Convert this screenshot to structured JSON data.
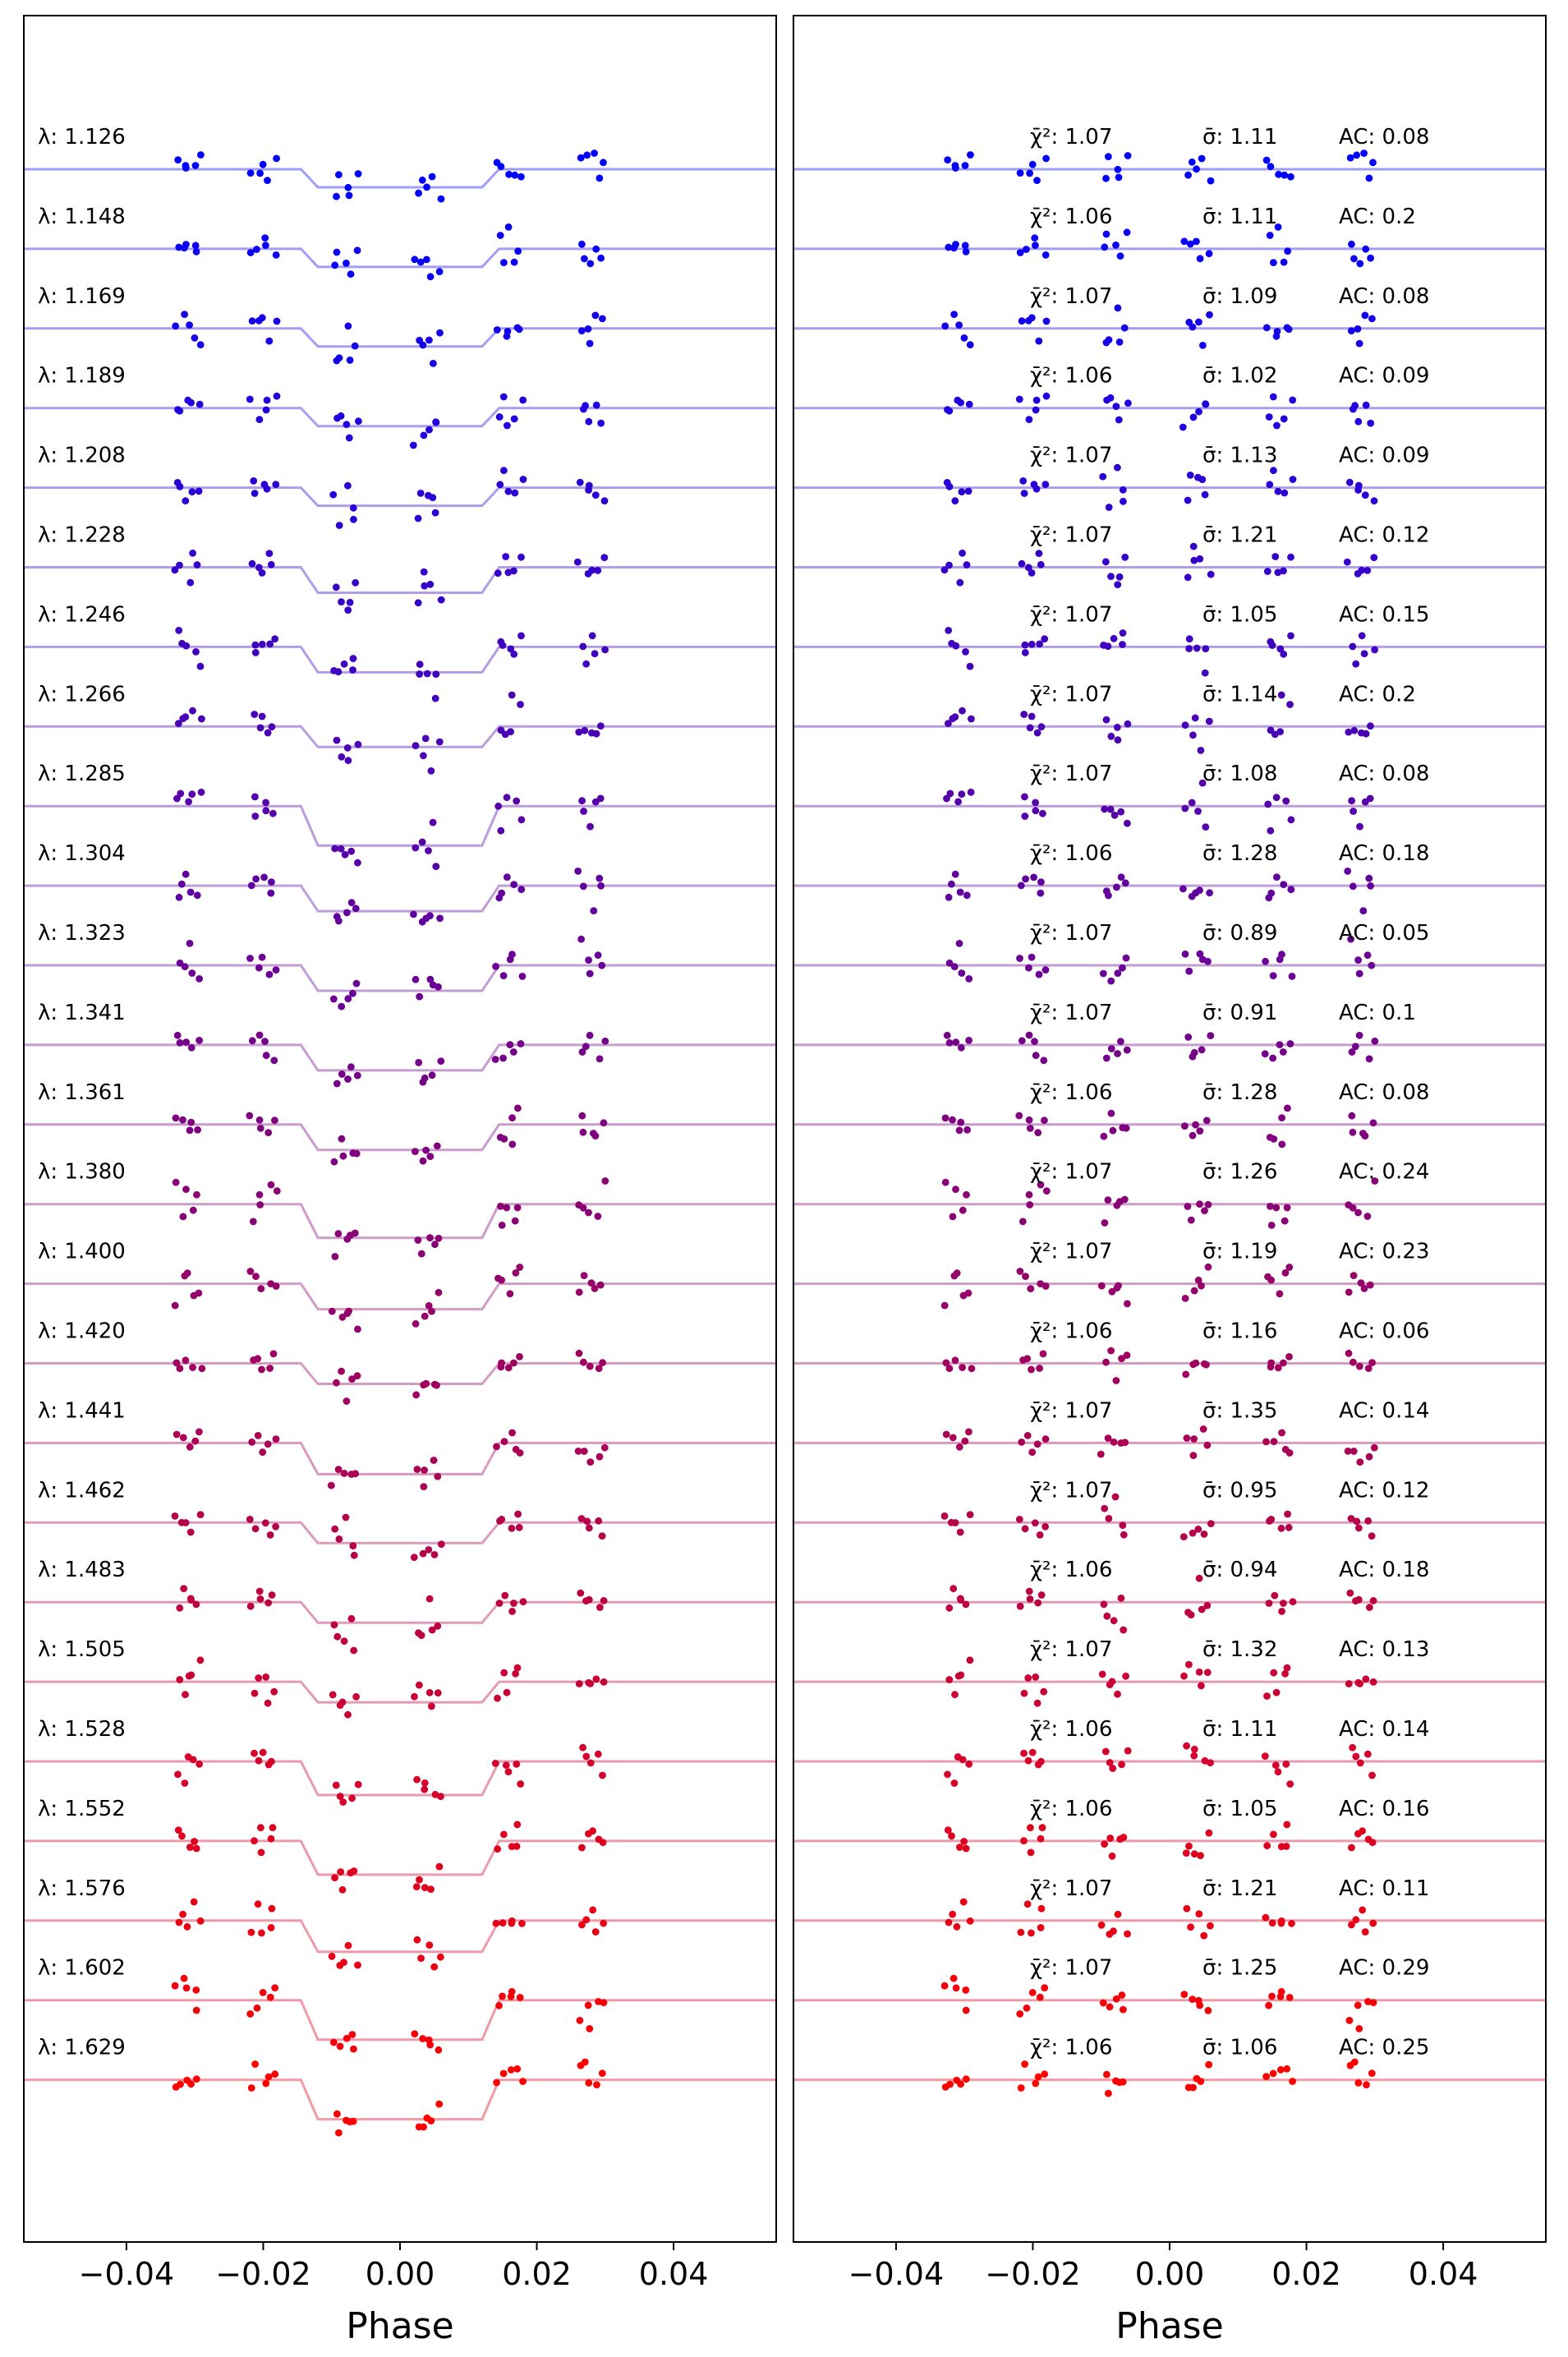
{
  "chart_data": [
    {
      "type": "scatter",
      "panel": "left",
      "xlabel": "Phase",
      "xlim": [
        -0.055,
        0.055
      ],
      "xticks": [
        -0.04,
        -0.02,
        0.0,
        0.02,
        0.04
      ],
      "xtick_labels": [
        "−0.04",
        "−0.02",
        "0.00",
        "0.02",
        "0.04"
      ],
      "y_ticks_shown": false,
      "grid": false,
      "legend": "none",
      "series_description": "25 spectroscopic light curves, vertically offset; each shows a transit model line (dip between phase -0.013 and 0.013) with binned data points",
      "transit": {
        "ingress_start": -0.0145,
        "ingress_end": -0.012,
        "egress_start": 0.012,
        "egress_end": 0.0145
      },
      "data_point_groups_phase": [
        -0.031,
        -0.02,
        -0.008,
        0.004,
        0.016,
        0.028
      ],
      "wavelength_labels": [
        "λ: 1.126",
        "λ: 1.148",
        "λ: 1.169",
        "λ: 1.189",
        "λ: 1.208",
        "λ: 1.228",
        "λ: 1.246",
        "λ: 1.266",
        "λ: 1.285",
        "λ: 1.304",
        "λ: 1.323",
        "λ: 1.341",
        "λ: 1.361",
        "λ: 1.380",
        "λ: 1.400",
        "λ: 1.420",
        "λ: 1.441",
        "λ: 1.462",
        "λ: 1.483",
        "λ: 1.505",
        "λ: 1.528",
        "λ: 1.552",
        "λ: 1.576",
        "λ: 1.602",
        "λ: 1.629"
      ],
      "transit_depth_relative": [
        0.22,
        0.22,
        0.22,
        0.22,
        0.22,
        0.31,
        0.31,
        0.25,
        0.48,
        0.31,
        0.31,
        0.31,
        0.31,
        0.41,
        0.31,
        0.25,
        0.38,
        0.25,
        0.25,
        0.25,
        0.41,
        0.41,
        0.38,
        0.48,
        0.48
      ]
    },
    {
      "type": "scatter",
      "panel": "right",
      "xlabel": "Phase",
      "xlim": [
        -0.055,
        0.055
      ],
      "xticks": [
        -0.04,
        -0.02,
        0.0,
        0.02,
        0.04
      ],
      "xtick_labels": [
        "−0.04",
        "−0.02",
        "0.00",
        "0.02",
        "0.04"
      ],
      "y_ticks_shown": false,
      "grid": false,
      "legend": "none",
      "series_description": "Residuals for each of the 25 channels, plotted about flat zero lines with fit statistics",
      "chi2_labels": [
        "χ̄²: 1.07",
        "χ̄²: 1.06",
        "χ̄²: 1.07",
        "χ̄²: 1.06",
        "χ̄²: 1.07",
        "χ̄²: 1.07",
        "χ̄²: 1.07",
        "χ̄²: 1.07",
        "χ̄²: 1.07",
        "χ̄²: 1.06",
        "χ̄²: 1.07",
        "χ̄²: 1.07",
        "χ̄²: 1.06",
        "χ̄²: 1.07",
        "χ̄²: 1.07",
        "χ̄²: 1.06",
        "χ̄²: 1.07",
        "χ̄²: 1.07",
        "χ̄²: 1.06",
        "χ̄²: 1.07",
        "χ̄²: 1.06",
        "χ̄²: 1.06",
        "χ̄²: 1.07",
        "χ̄²: 1.07",
        "χ̄²: 1.06"
      ],
      "sigma_labels": [
        "σ̄: 1.11",
        "σ̄: 1.11",
        "σ̄: 1.09",
        "σ̄: 1.02",
        "σ̄: 1.13",
        "σ̄: 1.21",
        "σ̄: 1.05",
        "σ̄: 1.14",
        "σ̄: 1.08",
        "σ̄: 1.28",
        "σ̄: 0.89",
        "σ̄: 0.91",
        "σ̄: 1.28",
        "σ̄: 1.26",
        "σ̄: 1.19",
        "σ̄: 1.16",
        "σ̄: 1.35",
        "σ̄: 0.95",
        "σ̄: 0.94",
        "σ̄: 1.32",
        "σ̄: 1.11",
        "σ̄: 1.05",
        "σ̄: 1.21",
        "σ̄: 1.25",
        "σ̄: 1.06"
      ],
      "ac_labels": [
        "AC: 0.08",
        "AC: 0.2",
        "AC: 0.08",
        "AC: 0.09",
        "AC: 0.09",
        "AC: 0.12",
        "AC: 0.15",
        "AC: 0.2",
        "AC: 0.08",
        "AC: 0.18",
        "AC: 0.05",
        "AC: 0.1",
        "AC: 0.08",
        "AC: 0.24",
        "AC: 0.23",
        "AC: 0.06",
        "AC: 0.14",
        "AC: 0.12",
        "AC: 0.18",
        "AC: 0.13",
        "AC: 0.14",
        "AC: 0.16",
        "AC: 0.11",
        "AC: 0.29",
        "AC: 0.25"
      ]
    }
  ],
  "colors": {
    "points_start": "#0000ff",
    "points_end": "#ff0000",
    "model_line_start": "#9e9efa",
    "model_line_end": "#f59aa2",
    "frame": "#000000"
  }
}
